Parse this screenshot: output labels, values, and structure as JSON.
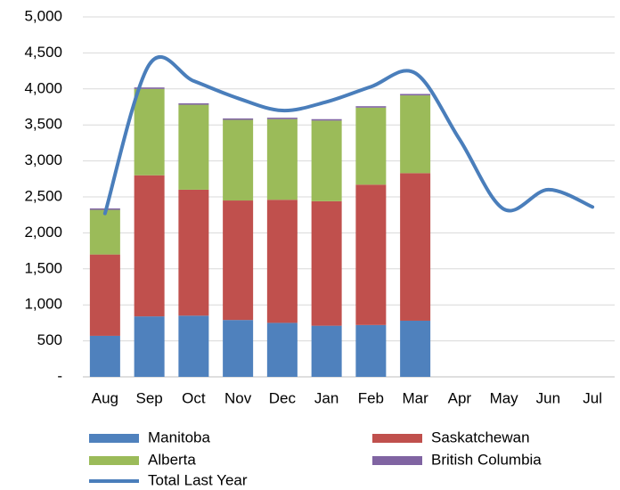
{
  "chart_data": {
    "type": "bar",
    "stacked": true,
    "categories": [
      "Aug",
      "Sep",
      "Oct",
      "Nov",
      "Dec",
      "Jan",
      "Feb",
      "Mar",
      "Apr",
      "May",
      "Jun",
      "Jul"
    ],
    "series": [
      {
        "name": "Manitoba",
        "color": "#4f81bd",
        "values": [
          570,
          840,
          850,
          790,
          750,
          710,
          720,
          780,
          null,
          null,
          null,
          null
        ]
      },
      {
        "name": "Saskatchewan",
        "color": "#c0504d",
        "values": [
          1130,
          1960,
          1750,
          1660,
          1710,
          1730,
          1950,
          2050,
          null,
          null,
          null,
          null
        ]
      },
      {
        "name": "Alberta",
        "color": "#9bbb59",
        "values": [
          620,
          1200,
          1180,
          1120,
          1120,
          1120,
          1070,
          1080,
          null,
          null,
          null,
          null
        ]
      },
      {
        "name": "British Columbia",
        "color": "#8064a2",
        "values": [
          20,
          20,
          20,
          20,
          20,
          20,
          20,
          20,
          null,
          null,
          null,
          null
        ]
      },
      {
        "name": "Total Last Year",
        "type": "line",
        "color": "#4a7ebb",
        "values": [
          2270,
          4340,
          4110,
          3870,
          3700,
          3820,
          4030,
          4220,
          3300,
          2330,
          2600,
          2360
        ]
      }
    ],
    "ylim": [
      0,
      5000
    ],
    "yticks": [
      {
        "value": 0,
        "label": "-"
      },
      500,
      {
        "value": 1000,
        "label": "1,000"
      },
      {
        "value": 1500,
        "label": "1,500"
      },
      {
        "value": 2000,
        "label": "2,000"
      },
      {
        "value": 2500,
        "label": "2,500"
      },
      {
        "value": 3000,
        "label": "3,000"
      },
      {
        "value": 3500,
        "label": "3,500"
      },
      {
        "value": 4000,
        "label": "4,000"
      },
      {
        "value": 4500,
        "label": "4,500"
      },
      {
        "value": 5000,
        "label": "5,000"
      }
    ],
    "grid": true
  }
}
